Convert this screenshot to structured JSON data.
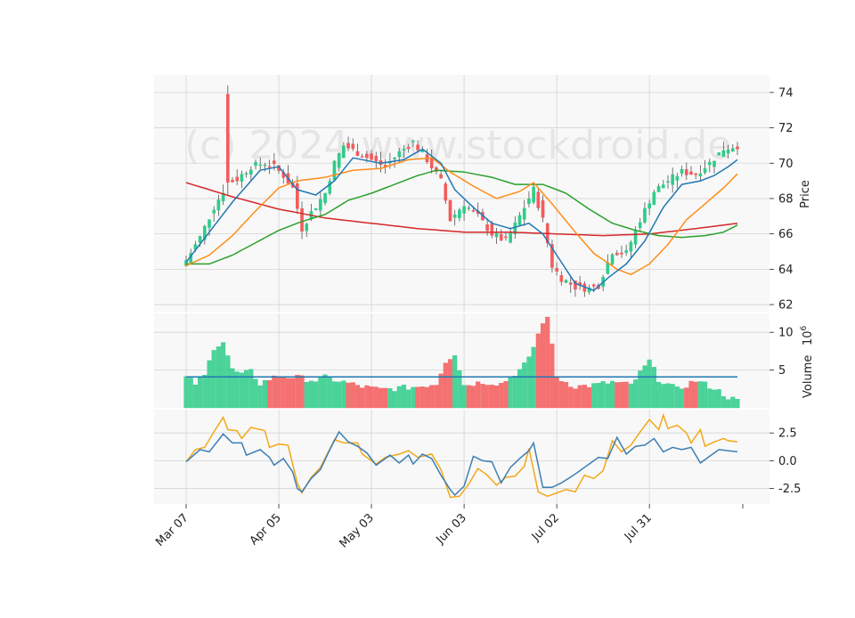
{
  "watermark": "(c) 2024 www.stockdroid.de",
  "colors": {
    "up": "#2ecc8a",
    "down": "#f45b5b",
    "sma_short": "#1f77b4",
    "sma_mid": "#ff8c1a",
    "sma_long": "#2ca02c",
    "sma_xlong": "#d62728",
    "volume_ma": "#1f77b4",
    "osc_a": "#3c7fb4",
    "osc_b": "#f2a818"
  },
  "chart_data": [
    {
      "type": "candlestick",
      "ylabel": "Price",
      "ylim": [
        61.6,
        75.0
      ],
      "yticks": [
        62,
        64,
        66,
        68,
        70,
        72,
        74
      ],
      "x_ticks": [
        {
          "label": "Mar 07",
          "index": 0
        },
        {
          "label": "Apr 05",
          "index": 20
        },
        {
          "label": "May 03",
          "index": 40
        },
        {
          "label": "Jun 03",
          "index": 60
        },
        {
          "label": "Jul 02",
          "index": 80
        },
        {
          "label": "Jul 31",
          "index": 100
        }
      ],
      "n_points": 120,
      "anchors_close": [
        [
          0,
          64.5
        ],
        [
          3,
          65.8
        ],
        [
          6,
          67.5
        ],
        [
          9,
          68.9
        ],
        [
          11,
          69.1
        ],
        [
          14,
          69.8
        ],
        [
          17,
          70.0
        ],
        [
          19,
          69.8
        ],
        [
          21,
          69.3
        ],
        [
          23,
          68.6
        ],
        [
          25,
          66.3
        ],
        [
          27,
          67.2
        ],
        [
          30,
          68.3
        ],
        [
          32,
          70.0
        ],
        [
          34,
          71.0
        ],
        [
          37,
          70.6
        ],
        [
          40,
          70.2
        ],
        [
          43,
          69.8
        ],
        [
          46,
          70.6
        ],
        [
          49,
          71.2
        ],
        [
          52,
          70.2
        ],
        [
          55,
          69.0
        ],
        [
          57,
          66.8
        ],
        [
          60,
          67.7
        ],
        [
          63,
          67.0
        ],
        [
          66,
          66.0
        ],
        [
          69,
          65.6
        ],
        [
          71,
          66.5
        ],
        [
          73,
          67.5
        ],
        [
          75,
          68.5
        ],
        [
          77,
          66.8
        ],
        [
          79,
          64.2
        ],
        [
          81,
          63.5
        ],
        [
          84,
          63.0
        ],
        [
          87,
          62.9
        ],
        [
          89,
          63.1
        ],
        [
          92,
          65.0
        ],
        [
          95,
          64.9
        ],
        [
          98,
          66.8
        ],
        [
          101,
          68.4
        ],
        [
          104,
          69.0
        ],
        [
          107,
          69.5
        ],
        [
          110,
          69.4
        ],
        [
          113,
          70.0
        ],
        [
          116,
          70.8
        ],
        [
          119,
          71.0
        ]
      ],
      "spikes": [
        {
          "index": 9,
          "high": 74.4,
          "open": 73.9
        }
      ],
      "sma_short_anchors": [
        [
          0,
          64.4
        ],
        [
          10,
          67.8
        ],
        [
          16,
          69.6
        ],
        [
          20,
          69.8
        ],
        [
          24,
          68.5
        ],
        [
          28,
          68.2
        ],
        [
          32,
          69.0
        ],
        [
          36,
          70.3
        ],
        [
          42,
          70.0
        ],
        [
          47,
          70.2
        ],
        [
          51,
          70.8
        ],
        [
          55,
          70.0
        ],
        [
          58,
          68.5
        ],
        [
          62,
          67.5
        ],
        [
          66,
          66.6
        ],
        [
          70,
          66.3
        ],
        [
          74,
          66.6
        ],
        [
          77,
          66.0
        ],
        [
          80,
          64.8
        ],
        [
          84,
          63.2
        ],
        [
          88,
          62.8
        ],
        [
          91,
          63.5
        ],
        [
          95,
          64.3
        ],
        [
          99,
          65.6
        ],
        [
          103,
          67.5
        ],
        [
          107,
          68.8
        ],
        [
          111,
          69.0
        ],
        [
          114,
          69.3
        ],
        [
          117,
          69.8
        ],
        [
          119,
          70.2
        ]
      ],
      "sma_mid_anchors": [
        [
          0,
          64.2
        ],
        [
          5,
          64.8
        ],
        [
          10,
          65.9
        ],
        [
          15,
          67.3
        ],
        [
          20,
          68.6
        ],
        [
          24,
          69.0
        ],
        [
          30,
          69.2
        ],
        [
          36,
          69.6
        ],
        [
          42,
          69.7
        ],
        [
          48,
          70.2
        ],
        [
          53,
          70.3
        ],
        [
          57,
          69.5
        ],
        [
          62,
          68.7
        ],
        [
          67,
          68.0
        ],
        [
          72,
          68.4
        ],
        [
          75,
          68.9
        ],
        [
          79,
          67.7
        ],
        [
          84,
          66.1
        ],
        [
          88,
          64.9
        ],
        [
          93,
          64.0
        ],
        [
          96,
          63.7
        ],
        [
          100,
          64.3
        ],
        [
          104,
          65.4
        ],
        [
          108,
          66.8
        ],
        [
          112,
          67.7
        ],
        [
          116,
          68.6
        ],
        [
          119,
          69.4
        ]
      ],
      "sma_long_anchors": [
        [
          0,
          64.3
        ],
        [
          5,
          64.3
        ],
        [
          10,
          64.8
        ],
        [
          15,
          65.5
        ],
        [
          20,
          66.2
        ],
        [
          25,
          66.7
        ],
        [
          30,
          67.1
        ],
        [
          35,
          67.9
        ],
        [
          40,
          68.3
        ],
        [
          45,
          68.8
        ],
        [
          50,
          69.3
        ],
        [
          54,
          69.6
        ],
        [
          60,
          69.5
        ],
        [
          66,
          69.2
        ],
        [
          71,
          68.8
        ],
        [
          77,
          68.8
        ],
        [
          82,
          68.3
        ],
        [
          87,
          67.4
        ],
        [
          92,
          66.6
        ],
        [
          97,
          66.2
        ],
        [
          102,
          65.9
        ],
        [
          107,
          65.8
        ],
        [
          112,
          65.9
        ],
        [
          116,
          66.1
        ],
        [
          119,
          66.5
        ]
      ],
      "sma_xlong_anchors": [
        [
          0,
          68.9
        ],
        [
          10,
          68.1
        ],
        [
          20,
          67.4
        ],
        [
          30,
          66.9
        ],
        [
          40,
          66.6
        ],
        [
          50,
          66.3
        ],
        [
          60,
          66.1
        ],
        [
          70,
          66.1
        ],
        [
          80,
          66.0
        ],
        [
          90,
          65.9
        ],
        [
          100,
          66.0
        ],
        [
          110,
          66.3
        ],
        [
          119,
          66.6
        ]
      ]
    },
    {
      "type": "bar",
      "ylabel": "Volume",
      "ylabel_exponent": "6",
      "ylim": [
        0,
        12.5
      ],
      "yticks": [
        5,
        10
      ],
      "volume_anchors": [
        [
          0,
          4.0
        ],
        [
          2,
          3.2
        ],
        [
          4,
          4.2
        ],
        [
          6,
          8.0
        ],
        [
          8,
          8.8
        ],
        [
          10,
          5.0
        ],
        [
          12,
          4.4
        ],
        [
          14,
          4.8
        ],
        [
          16,
          3.2
        ],
        [
          18,
          3.8
        ],
        [
          20,
          4.2
        ],
        [
          24,
          4.0
        ],
        [
          28,
          3.6
        ],
        [
          30,
          4.0
        ],
        [
          34,
          3.4
        ],
        [
          38,
          2.8
        ],
        [
          42,
          2.4
        ],
        [
          46,
          2.6
        ],
        [
          50,
          2.8
        ],
        [
          54,
          3.2
        ],
        [
          56,
          6.2
        ],
        [
          58,
          7.2
        ],
        [
          60,
          3.0
        ],
        [
          64,
          3.4
        ],
        [
          68,
          3.2
        ],
        [
          72,
          5.0
        ],
        [
          74,
          6.4
        ],
        [
          76,
          9.8
        ],
        [
          78,
          12.3
        ],
        [
          80,
          4.0
        ],
        [
          84,
          2.8
        ],
        [
          88,
          3.0
        ],
        [
          92,
          3.4
        ],
        [
          96,
          3.0
        ],
        [
          100,
          6.2
        ],
        [
          102,
          3.8
        ],
        [
          106,
          2.4
        ],
        [
          110,
          3.6
        ],
        [
          114,
          2.6
        ],
        [
          117,
          1.4
        ],
        [
          119,
          0.9
        ]
      ],
      "volume_ma": 4.1
    },
    {
      "type": "line",
      "ylim": [
        -3.9,
        4.6
      ],
      "yticks": [
        -2.5,
        0.0,
        2.5
      ],
      "series_a_anchors": [
        [
          0,
          -0.1
        ],
        [
          3,
          1.0
        ],
        [
          5,
          0.8
        ],
        [
          8,
          2.4
        ],
        [
          10,
          1.6
        ],
        [
          12,
          1.6
        ],
        [
          13,
          0.5
        ],
        [
          16,
          1.0
        ],
        [
          18,
          0.3
        ],
        [
          19,
          -0.4
        ],
        [
          21,
          0.2
        ],
        [
          23,
          -1.0
        ],
        [
          24,
          -2.5
        ],
        [
          25,
          -2.8
        ],
        [
          27,
          -1.6
        ],
        [
          29,
          -0.8
        ],
        [
          31,
          1.0
        ],
        [
          33,
          2.6
        ],
        [
          35,
          1.7
        ],
        [
          37,
          1.3
        ],
        [
          39,
          0.7
        ],
        [
          41,
          -0.4
        ],
        [
          44,
          0.5
        ],
        [
          46,
          -0.2
        ],
        [
          48,
          0.5
        ],
        [
          49,
          -0.3
        ],
        [
          51,
          0.6
        ],
        [
          53,
          0.2
        ],
        [
          55,
          -1.3
        ],
        [
          57,
          -2.6
        ],
        [
          58,
          -3.1
        ],
        [
          60,
          -2.3
        ],
        [
          62,
          0.4
        ],
        [
          64,
          0.0
        ],
        [
          66,
          -0.1
        ],
        [
          68,
          -2.0
        ],
        [
          70,
          -0.6
        ],
        [
          72,
          0.2
        ],
        [
          74,
          0.9
        ],
        [
          75,
          1.6
        ],
        [
          77,
          -2.4
        ],
        [
          79,
          -2.4
        ],
        [
          81,
          -2.0
        ],
        [
          84,
          -1.2
        ],
        [
          87,
          -0.3
        ],
        [
          89,
          0.3
        ],
        [
          91,
          0.2
        ],
        [
          93,
          2.1
        ],
        [
          95,
          0.6
        ],
        [
          97,
          1.3
        ],
        [
          99,
          1.4
        ],
        [
          101,
          2.0
        ],
        [
          103,
          0.8
        ],
        [
          105,
          1.2
        ],
        [
          107,
          1.0
        ],
        [
          109,
          1.2
        ],
        [
          111,
          -0.2
        ],
        [
          113,
          0.4
        ],
        [
          115,
          1.0
        ],
        [
          117,
          0.9
        ],
        [
          119,
          0.8
        ]
      ],
      "series_b_anchors": [
        [
          0,
          -0.1
        ],
        [
          2,
          1.0
        ],
        [
          4,
          1.2
        ],
        [
          6,
          2.6
        ],
        [
          8,
          3.9
        ],
        [
          9,
          2.8
        ],
        [
          11,
          2.7
        ],
        [
          12,
          2.0
        ],
        [
          14,
          3.0
        ],
        [
          17,
          2.7
        ],
        [
          18,
          1.2
        ],
        [
          20,
          1.5
        ],
        [
          22,
          1.4
        ],
        [
          24,
          -2.0
        ],
        [
          25,
          -2.9
        ],
        [
          27,
          -1.5
        ],
        [
          29,
          -0.6
        ],
        [
          32,
          1.9
        ],
        [
          34,
          1.6
        ],
        [
          37,
          1.6
        ],
        [
          38,
          0.6
        ],
        [
          41,
          -0.3
        ],
        [
          43,
          0.3
        ],
        [
          46,
          0.6
        ],
        [
          48,
          0.9
        ],
        [
          50,
          0.3
        ],
        [
          53,
          0.6
        ],
        [
          55,
          -0.8
        ],
        [
          57,
          -3.3
        ],
        [
          59,
          -3.2
        ],
        [
          61,
          -2.1
        ],
        [
          63,
          -0.7
        ],
        [
          65,
          -1.3
        ],
        [
          67,
          -2.2
        ],
        [
          69,
          -1.5
        ],
        [
          71,
          -1.4
        ],
        [
          73,
          -0.5
        ],
        [
          74,
          1.1
        ],
        [
          76,
          -2.8
        ],
        [
          78,
          -3.2
        ],
        [
          80,
          -2.9
        ],
        [
          82,
          -2.6
        ],
        [
          84,
          -2.8
        ],
        [
          86,
          -1.3
        ],
        [
          88,
          -1.6
        ],
        [
          90,
          -0.9
        ],
        [
          92,
          1.8
        ],
        [
          94,
          0.8
        ],
        [
          96,
          1.4
        ],
        [
          98,
          2.6
        ],
        [
          100,
          3.7
        ],
        [
          102,
          2.8
        ],
        [
          103,
          4.1
        ],
        [
          104,
          2.9
        ],
        [
          106,
          3.2
        ],
        [
          108,
          2.5
        ],
        [
          109,
          1.6
        ],
        [
          111,
          2.8
        ],
        [
          112,
          1.3
        ],
        [
          114,
          1.7
        ],
        [
          116,
          2.0
        ],
        [
          117,
          1.8
        ],
        [
          119,
          1.7
        ]
      ]
    }
  ]
}
